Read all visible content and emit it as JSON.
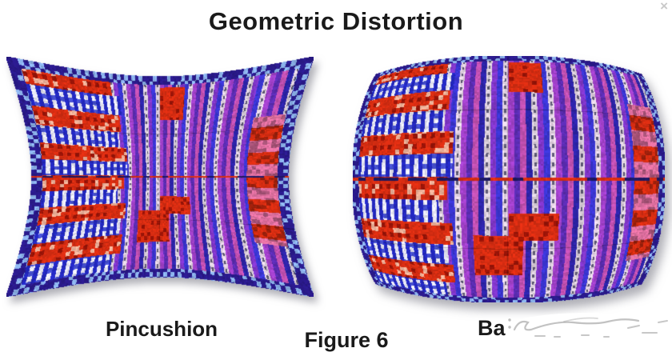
{
  "window": {
    "close_glyph": "×"
  },
  "figure": {
    "title": "Geometric Distortion",
    "caption": "Figure 6",
    "left_label": "Pincushion",
    "right_label_visible": "Ba",
    "right_label_obscured": true
  },
  "colors": {
    "background": "#ffffff",
    "text": "#1a1a1a",
    "close_icon": "#c9c9c9",
    "smudge_stroke": "#8f8f8f"
  },
  "distortion_images": {
    "pincushion": {
      "type": "pincushion",
      "k": 0.25
    },
    "barrel": {
      "type": "barrel",
      "k": 0.15
    },
    "shadow": "rgba(95,95,110,0.5)",
    "palette": {
      "dark_blue": "#2d24a8",
      "blue": "#3a35d0",
      "purple": "#8036c8",
      "violet": "#a040c8",
      "indigo": "#5a2cb0",
      "magenta": "#c050b0",
      "light_pink": "#e0d0e0",
      "cream": "#d9cdd9",
      "red": "#d62d12",
      "dark_red": "#961408",
      "pink": "#e070a0",
      "border_blue": "#2a1a8a",
      "border_dot": "#8ab0e8",
      "white_stripe": "#e4e4f2",
      "checker_blue": "#2328be",
      "dot_dark": "#5a5670",
      "seam_navy": "#1e1860",
      "red_light_dot": "#ecb098"
    }
  }
}
